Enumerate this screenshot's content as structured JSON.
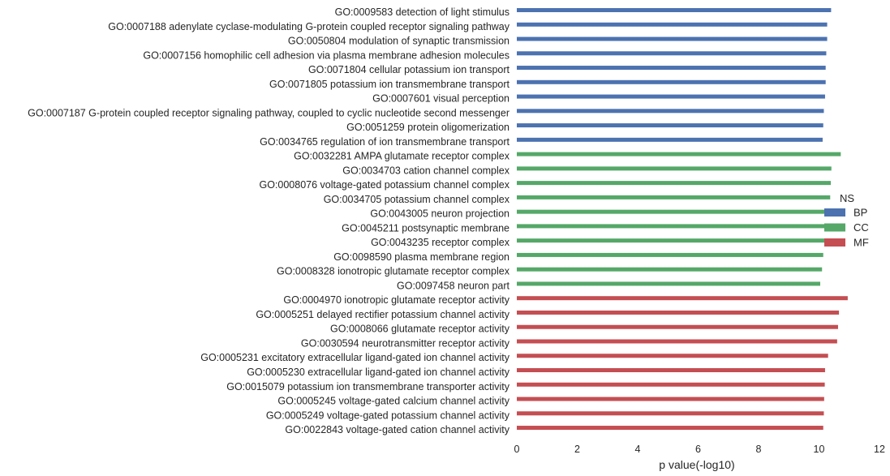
{
  "chart_data": {
    "type": "bar",
    "orientation": "horizontal",
    "xlabel": "p value(-log10)",
    "ylabel": "",
    "xlim": [
      0,
      12
    ],
    "xticks": [
      0,
      2,
      4,
      6,
      8,
      10,
      12
    ],
    "grid": false,
    "legend": {
      "title": "NS",
      "placement": "right",
      "entries": [
        {
          "name": "BP",
          "color": "#4c72b0"
        },
        {
          "name": "CC",
          "color": "#55a868"
        },
        {
          "name": "MF",
          "color": "#c44e52"
        }
      ]
    },
    "categories": [
      {
        "label": "GO:0009583 detection of light stimulus",
        "group": "BP",
        "value": 10.4
      },
      {
        "label": "GO:0007188 adenylate cyclase-modulating G-protein coupled receptor signaling pathway",
        "group": "BP",
        "value": 10.27
      },
      {
        "label": "GO:0050804 modulation of synaptic transmission",
        "group": "BP",
        "value": 10.27
      },
      {
        "label": "GO:0007156 homophilic cell adhesion via plasma membrane adhesion molecules",
        "group": "BP",
        "value": 10.24
      },
      {
        "label": "GO:0071804 cellular potassium ion transport",
        "group": "BP",
        "value": 10.22
      },
      {
        "label": "GO:0071805 potassium ion transmembrane transport",
        "group": "BP",
        "value": 10.22
      },
      {
        "label": "GO:0007601 visual perception",
        "group": "BP",
        "value": 10.2
      },
      {
        "label": "GO:0007187 G-protein coupled receptor signaling pathway, coupled to cyclic nucleotide second messenger",
        "group": "BP",
        "value": 10.16
      },
      {
        "label": "GO:0051259 protein oligomerization",
        "group": "BP",
        "value": 10.14
      },
      {
        "label": "GO:0034765 regulation of ion transmembrane transport",
        "group": "BP",
        "value": 10.12
      },
      {
        "label": "GO:0032281 AMPA glutamate receptor complex",
        "group": "CC",
        "value": 10.72
      },
      {
        "label": "GO:0034703 cation channel complex",
        "group": "CC",
        "value": 10.41
      },
      {
        "label": "GO:0008076 voltage-gated potassium channel complex",
        "group": "CC",
        "value": 10.39
      },
      {
        "label": "GO:0034705 potassium channel complex",
        "group": "CC",
        "value": 10.37
      },
      {
        "label": "GO:0043005 neuron projection",
        "group": "CC",
        "value": 10.3
      },
      {
        "label": "GO:0045211 postsynaptic membrane",
        "group": "CC",
        "value": 10.27
      },
      {
        "label": "GO:0043235 receptor complex",
        "group": "CC",
        "value": 10.22
      },
      {
        "label": "GO:0098590 plasma membrane region",
        "group": "CC",
        "value": 10.14
      },
      {
        "label": "GO:0008328 ionotropic glutamate receptor complex",
        "group": "CC",
        "value": 10.1
      },
      {
        "label": "GO:0097458 neuron part",
        "group": "CC",
        "value": 10.04
      },
      {
        "label": "GO:0004970 ionotropic glutamate receptor activity",
        "group": "MF",
        "value": 10.95
      },
      {
        "label": "GO:0005251 delayed rectifier potassium channel activity",
        "group": "MF",
        "value": 10.66
      },
      {
        "label": "GO:0008066 glutamate receptor activity",
        "group": "MF",
        "value": 10.63
      },
      {
        "label": "GO:0030594 neurotransmitter receptor activity",
        "group": "MF",
        "value": 10.6
      },
      {
        "label": "GO:0005231 excitatory extracellular ligand-gated ion channel activity",
        "group": "MF",
        "value": 10.3
      },
      {
        "label": "GO:0005230 extracellular ligand-gated ion channel activity",
        "group": "MF",
        "value": 10.2
      },
      {
        "label": "GO:0015079 potassium ion transmembrane transporter activity",
        "group": "MF",
        "value": 10.19
      },
      {
        "label": "GO:0005245 voltage-gated calcium channel activity",
        "group": "MF",
        "value": 10.17
      },
      {
        "label": "GO:0005249 voltage-gated potassium channel activity",
        "group": "MF",
        "value": 10.16
      },
      {
        "label": "GO:0022843 voltage-gated cation channel activity",
        "group": "MF",
        "value": 10.14
      }
    ]
  }
}
